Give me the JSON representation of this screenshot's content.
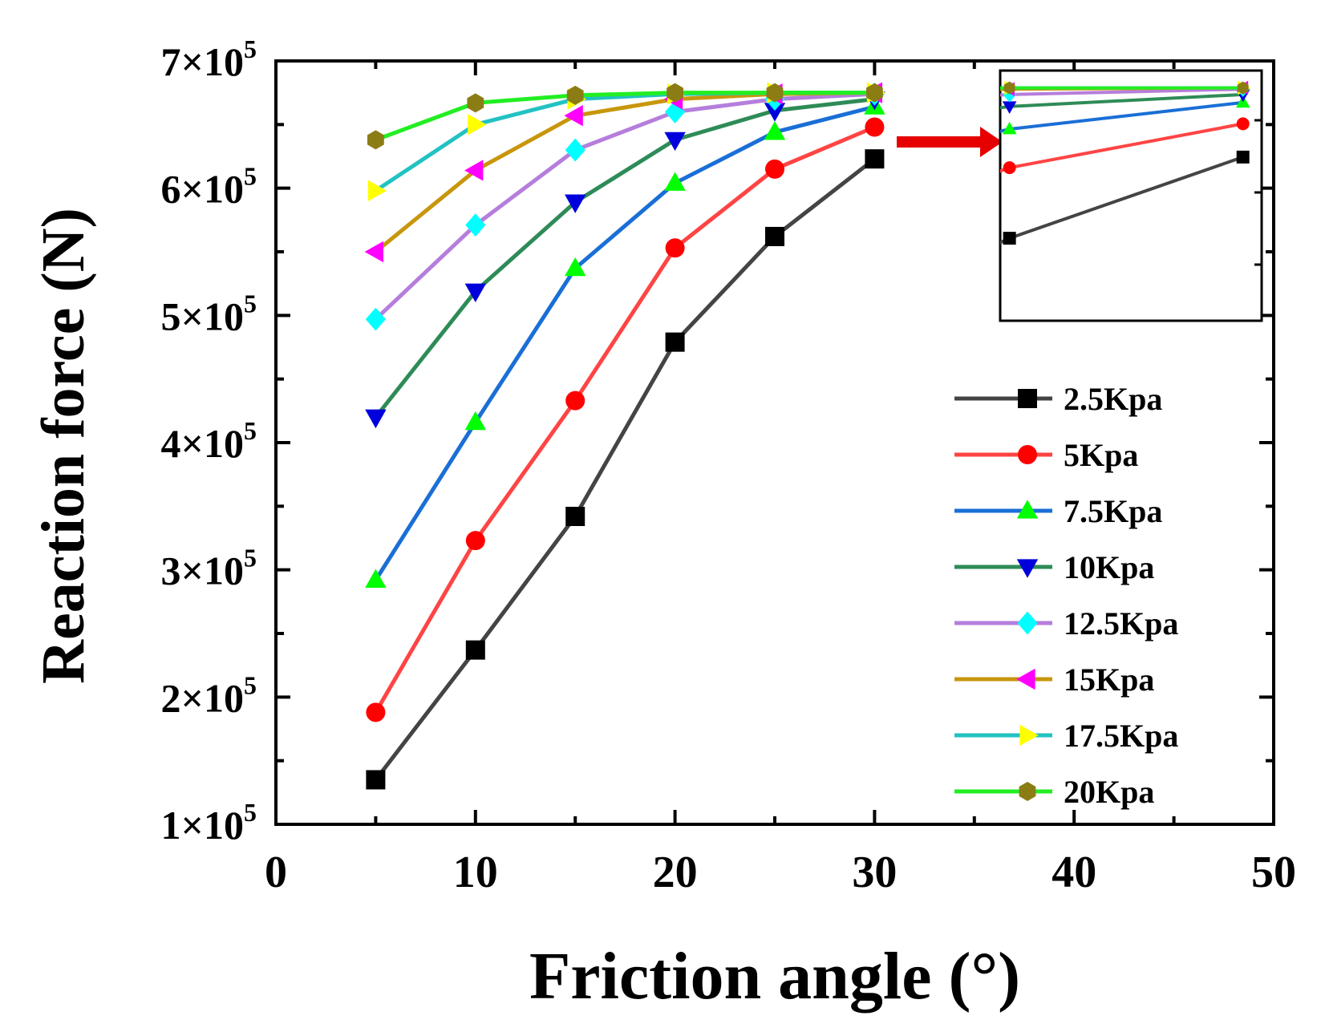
{
  "chart_data": {
    "type": "line",
    "title": "",
    "xlabel": "Friction angle (°)",
    "ylabel": "Reaction force (N)",
    "xlim": [
      0,
      50
    ],
    "ylim": [
      100000,
      700000
    ],
    "xticks": [
      0,
      10,
      20,
      30,
      40,
      50
    ],
    "xtick_labels": [
      "0",
      "10",
      "20",
      "30",
      "40",
      "50"
    ],
    "yticks": [
      {
        "mantissa": "1×10",
        "exp": "5"
      },
      {
        "mantissa": "2×10",
        "exp": "5"
      },
      {
        "mantissa": "3×10",
        "exp": "5"
      },
      {
        "mantissa": "4×10",
        "exp": "5"
      },
      {
        "mantissa": "5×10",
        "exp": "5"
      },
      {
        "mantissa": "6×10",
        "exp": "5"
      },
      {
        "mantissa": "7×10",
        "exp": "5"
      }
    ],
    "x": [
      5,
      10,
      15,
      20,
      25,
      30
    ],
    "legend_position": "bottom-right",
    "series": [
      {
        "name": "2.5Kpa",
        "color": "#444444",
        "marker_color": "#000000",
        "marker": "square",
        "values": [
          135000,
          237000,
          342000,
          479000,
          562000,
          623000
        ]
      },
      {
        "name": "5Kpa",
        "color": "#ff4444",
        "marker_color": "#ff0000",
        "marker": "circle",
        "values": [
          188000,
          323000,
          433000,
          553000,
          615000,
          648000
        ]
      },
      {
        "name": "7.5Kpa",
        "color": "#1a6fd6",
        "marker_color": "#00ff00",
        "marker": "triangle-up",
        "values": [
          292000,
          416000,
          537000,
          604000,
          644000,
          664000
        ]
      },
      {
        "name": "10Kpa",
        "color": "#2e8b57",
        "marker_color": "#0000dd",
        "marker": "triangle-down",
        "values": [
          420000,
          519000,
          589000,
          638000,
          661000,
          670000
        ]
      },
      {
        "name": "12.5Kpa",
        "color": "#b57edc",
        "marker_color": "#00ffff",
        "marker": "diamond",
        "values": [
          497000,
          571000,
          630000,
          660000,
          670000,
          674000
        ]
      },
      {
        "name": "15Kpa",
        "color": "#c8960c",
        "marker_color": "#ff00ff",
        "marker": "triangle-left",
        "values": [
          550000,
          614000,
          657000,
          670000,
          674000,
          675000
        ]
      },
      {
        "name": "17.5Kpa",
        "color": "#22c2c2",
        "marker_color": "#ffff00",
        "marker": "triangle-right",
        "values": [
          598000,
          650000,
          670000,
          674000,
          675000,
          675000
        ]
      },
      {
        "name": "20Kpa",
        "color": "#22ee22",
        "marker_color": "#8b7d14",
        "marker": "hexagon",
        "values": [
          638000,
          667000,
          673000,
          675000,
          675000,
          675000
        ]
      }
    ],
    "annotations": [
      "arrow from main plot to zoomed inset"
    ],
    "inset": {
      "description": "zoom of x 25–30",
      "xlim": [
        24.8,
        30.4
      ],
      "ylim": [
        500000,
        688000
      ],
      "x": [
        25,
        30
      ]
    }
  }
}
